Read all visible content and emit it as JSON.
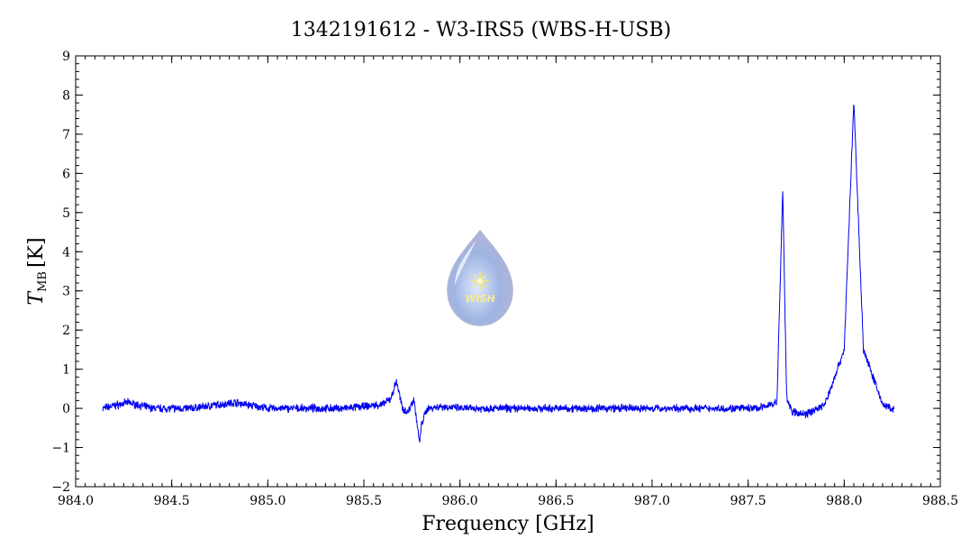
{
  "chart_data": {
    "type": "line",
    "title": "1342191612 - W3-IRS5 (WBS-H-USB)",
    "xlabel": "Frequency [GHz]",
    "ylabel_main": "T",
    "ylabel_sub": "MB",
    "ylabel_unit": "[K]",
    "xlim": [
      984.0,
      988.5
    ],
    "ylim": [
      -2,
      9
    ],
    "x_ticks": [
      984.0,
      984.5,
      985.0,
      985.5,
      986.0,
      986.5,
      987.0,
      987.5,
      988.0,
      988.5
    ],
    "x_tick_labels": [
      "984.0",
      "984.5",
      "985.0",
      "985.5",
      "986.0",
      "986.5",
      "987.0",
      "987.5",
      "988.0",
      "988.5"
    ],
    "y_ticks": [
      -2,
      -1,
      0,
      1,
      2,
      3,
      4,
      5,
      6,
      7,
      8,
      9
    ],
    "y_tick_labels": [
      "−2",
      "−1",
      "0",
      "1",
      "2",
      "3",
      "4",
      "5",
      "6",
      "7",
      "8",
      "9"
    ],
    "grid": false,
    "series": [
      {
        "color": "#0000ee",
        "x": [
          984.14,
          984.27,
          984.4,
          984.6,
          984.83,
          985.0,
          985.2,
          985.4,
          985.6,
          985.64,
          985.67,
          985.7,
          985.73,
          985.76,
          985.79,
          985.8,
          985.83,
          985.9,
          986.0,
          986.2,
          986.5,
          986.8,
          987.0,
          987.3,
          987.55,
          987.65,
          987.68,
          987.7,
          987.73,
          987.8,
          987.9,
          988.0,
          988.05,
          988.1,
          988.2,
          988.26
        ],
        "y": [
          0.0,
          0.15,
          0.0,
          0.0,
          0.15,
          0.0,
          0.0,
          0.0,
          0.1,
          0.25,
          0.7,
          0.0,
          -0.1,
          0.25,
          -0.9,
          -0.4,
          0.0,
          0.05,
          0.0,
          0.0,
          0.0,
          0.0,
          0.0,
          0.0,
          0.0,
          0.15,
          5.6,
          0.3,
          -0.1,
          -0.15,
          0.1,
          1.5,
          7.85,
          1.5,
          0.1,
          -0.05
        ]
      }
    ]
  },
  "logo": {
    "text": "WISH"
  }
}
